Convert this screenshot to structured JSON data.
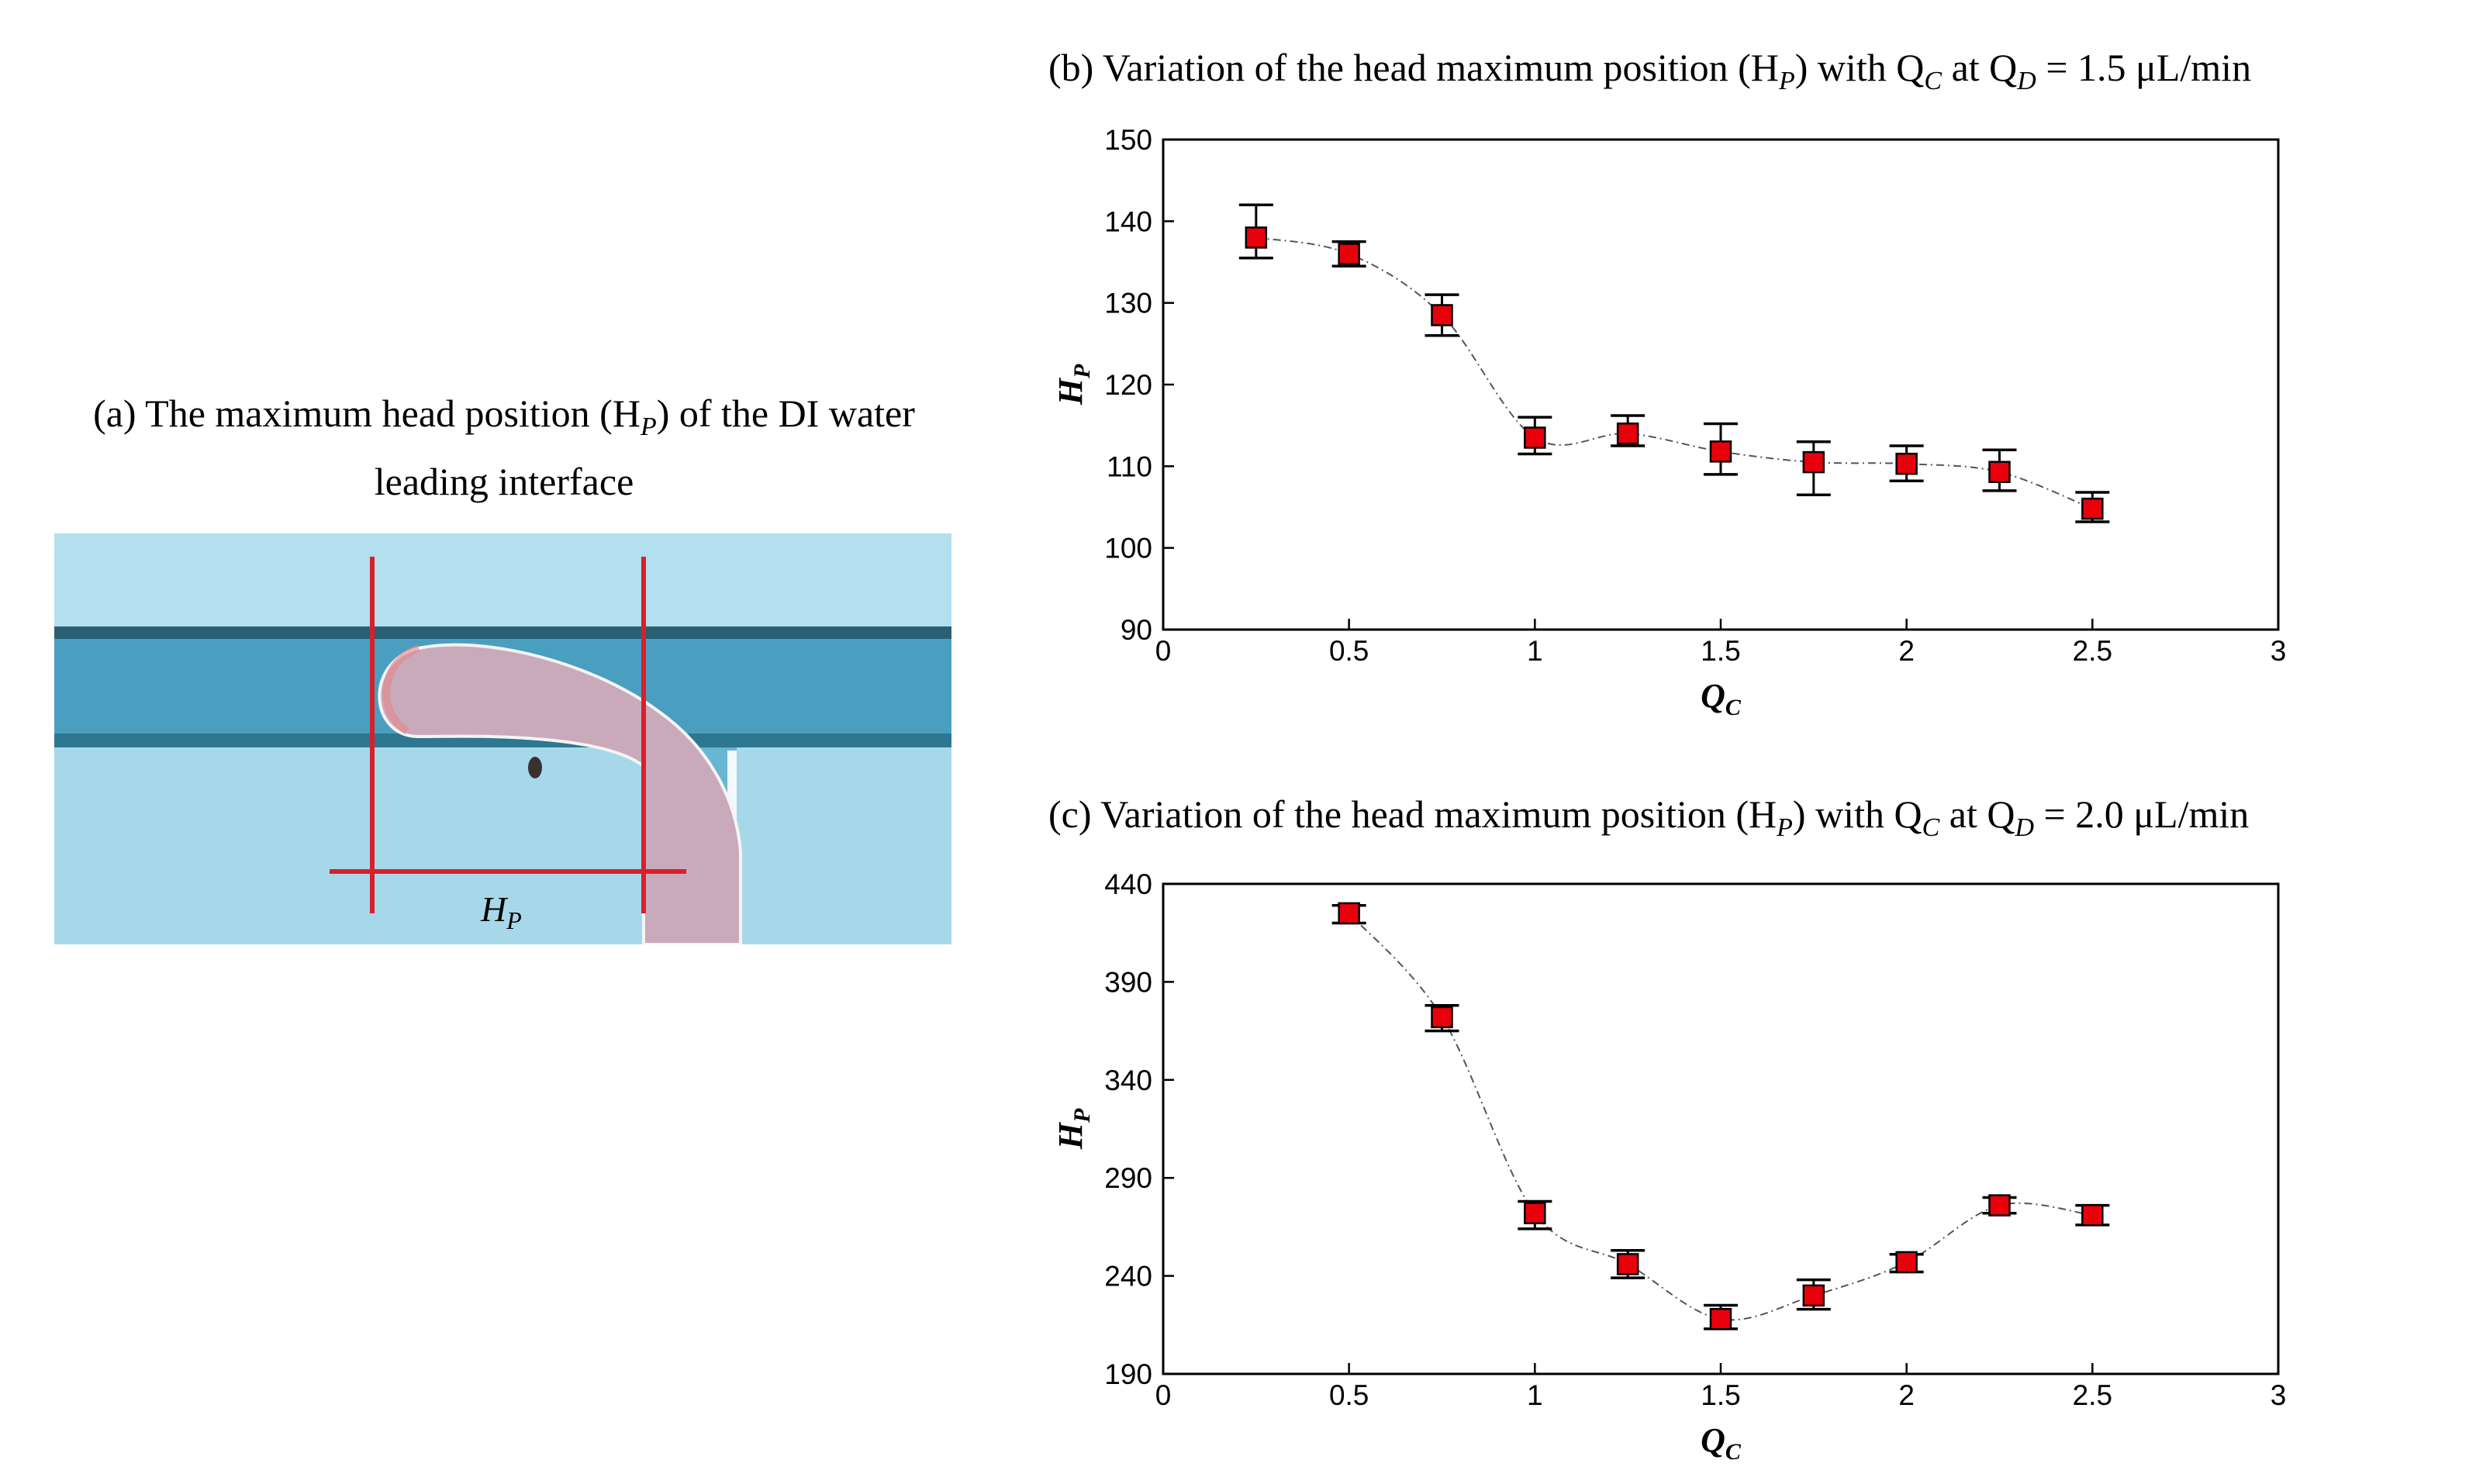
{
  "panel_a": {
    "title": "(a) The maximum head position (H",
    "title_sub": "P",
    "title_end": ") of the DI water leading interface",
    "image_label": "H",
    "image_label_sub": "P",
    "colors": {
      "channel": "#a9d7e8",
      "wall": "#2a6f86",
      "droplet": "#c7a9b9",
      "marker": "#d8202a"
    }
  },
  "chart_data": [
    {
      "type": "scatter",
      "title": "(b) Variation of the head maximum position (H",
      "title_parts": {
        "hp_sub": "P",
        "mid": ") with Q",
        "qc_sub": "C",
        "at": " at Q",
        "qd_sub": "D",
        "end": " = 1.5 μL/min"
      },
      "xlabel": "Q",
      "xlabel_sub": "C",
      "ylabel": "H",
      "ylabel_sub": "P",
      "xlim": [
        0,
        3
      ],
      "ylim": [
        90,
        150
      ],
      "xticks": [
        0,
        0.5,
        1,
        1.5,
        2,
        2.5,
        3
      ],
      "xtick_labels": [
        "0",
        "0.5",
        "1",
        "1.5",
        "2",
        "2.5",
        "3"
      ],
      "yticks": [
        90,
        100,
        110,
        120,
        130,
        140,
        150
      ],
      "ytick_labels": [
        "90",
        "100",
        "110",
        "120",
        "130",
        "140",
        "150"
      ],
      "grid": false,
      "marker_color": "#e8000b",
      "series": [
        {
          "x": [
            0.25,
            0.5,
            0.75,
            1.0,
            1.25,
            1.5,
            1.75,
            2.0,
            2.25,
            2.5
          ],
          "y": [
            138,
            136,
            128.5,
            113.5,
            114,
            111.8,
            110.5,
            110.3,
            109.3,
            104.8
          ],
          "err_low": [
            135.5,
            134.5,
            126,
            111.5,
            112.5,
            109,
            106.5,
            108.2,
            107,
            103.2
          ],
          "err_high": [
            142,
            137.5,
            131,
            116,
            116.2,
            115.2,
            113,
            112.5,
            112,
            106.8
          ]
        }
      ]
    },
    {
      "type": "scatter",
      "title": "(c) Variation of the head maximum position (H",
      "title_parts": {
        "hp_sub": "P",
        "mid": ") with Q",
        "qc_sub": "C",
        "at": " at Q",
        "qd_sub": "D",
        "end": " = 2.0 μL/min"
      },
      "xlabel": "Q",
      "xlabel_sub": "C",
      "ylabel": "H",
      "ylabel_sub": "P",
      "xlim": [
        0,
        3
      ],
      "ylim": [
        190,
        440
      ],
      "xticks": [
        0,
        0.5,
        1,
        1.5,
        2,
        2.5,
        3
      ],
      "xtick_labels": [
        "0",
        "0.5",
        "1",
        "1.5",
        "2",
        "2.5",
        "3"
      ],
      "yticks": [
        190,
        240,
        290,
        340,
        390,
        440
      ],
      "ytick_labels": [
        "190",
        "240",
        "290",
        "340",
        "390",
        "440"
      ],
      "grid": false,
      "marker_color": "#e8000b",
      "series": [
        {
          "x": [
            0.5,
            0.75,
            1.0,
            1.25,
            1.5,
            1.75,
            2.0,
            2.25,
            2.5
          ],
          "y": [
            425,
            372,
            272,
            246,
            218,
            230,
            247,
            276,
            271
          ],
          "err_low": [
            420,
            365,
            264,
            239,
            213,
            223,
            242,
            272,
            266
          ],
          "err_high": [
            429,
            378,
            278,
            253,
            225,
            238,
            251,
            280,
            276
          ]
        }
      ]
    }
  ]
}
